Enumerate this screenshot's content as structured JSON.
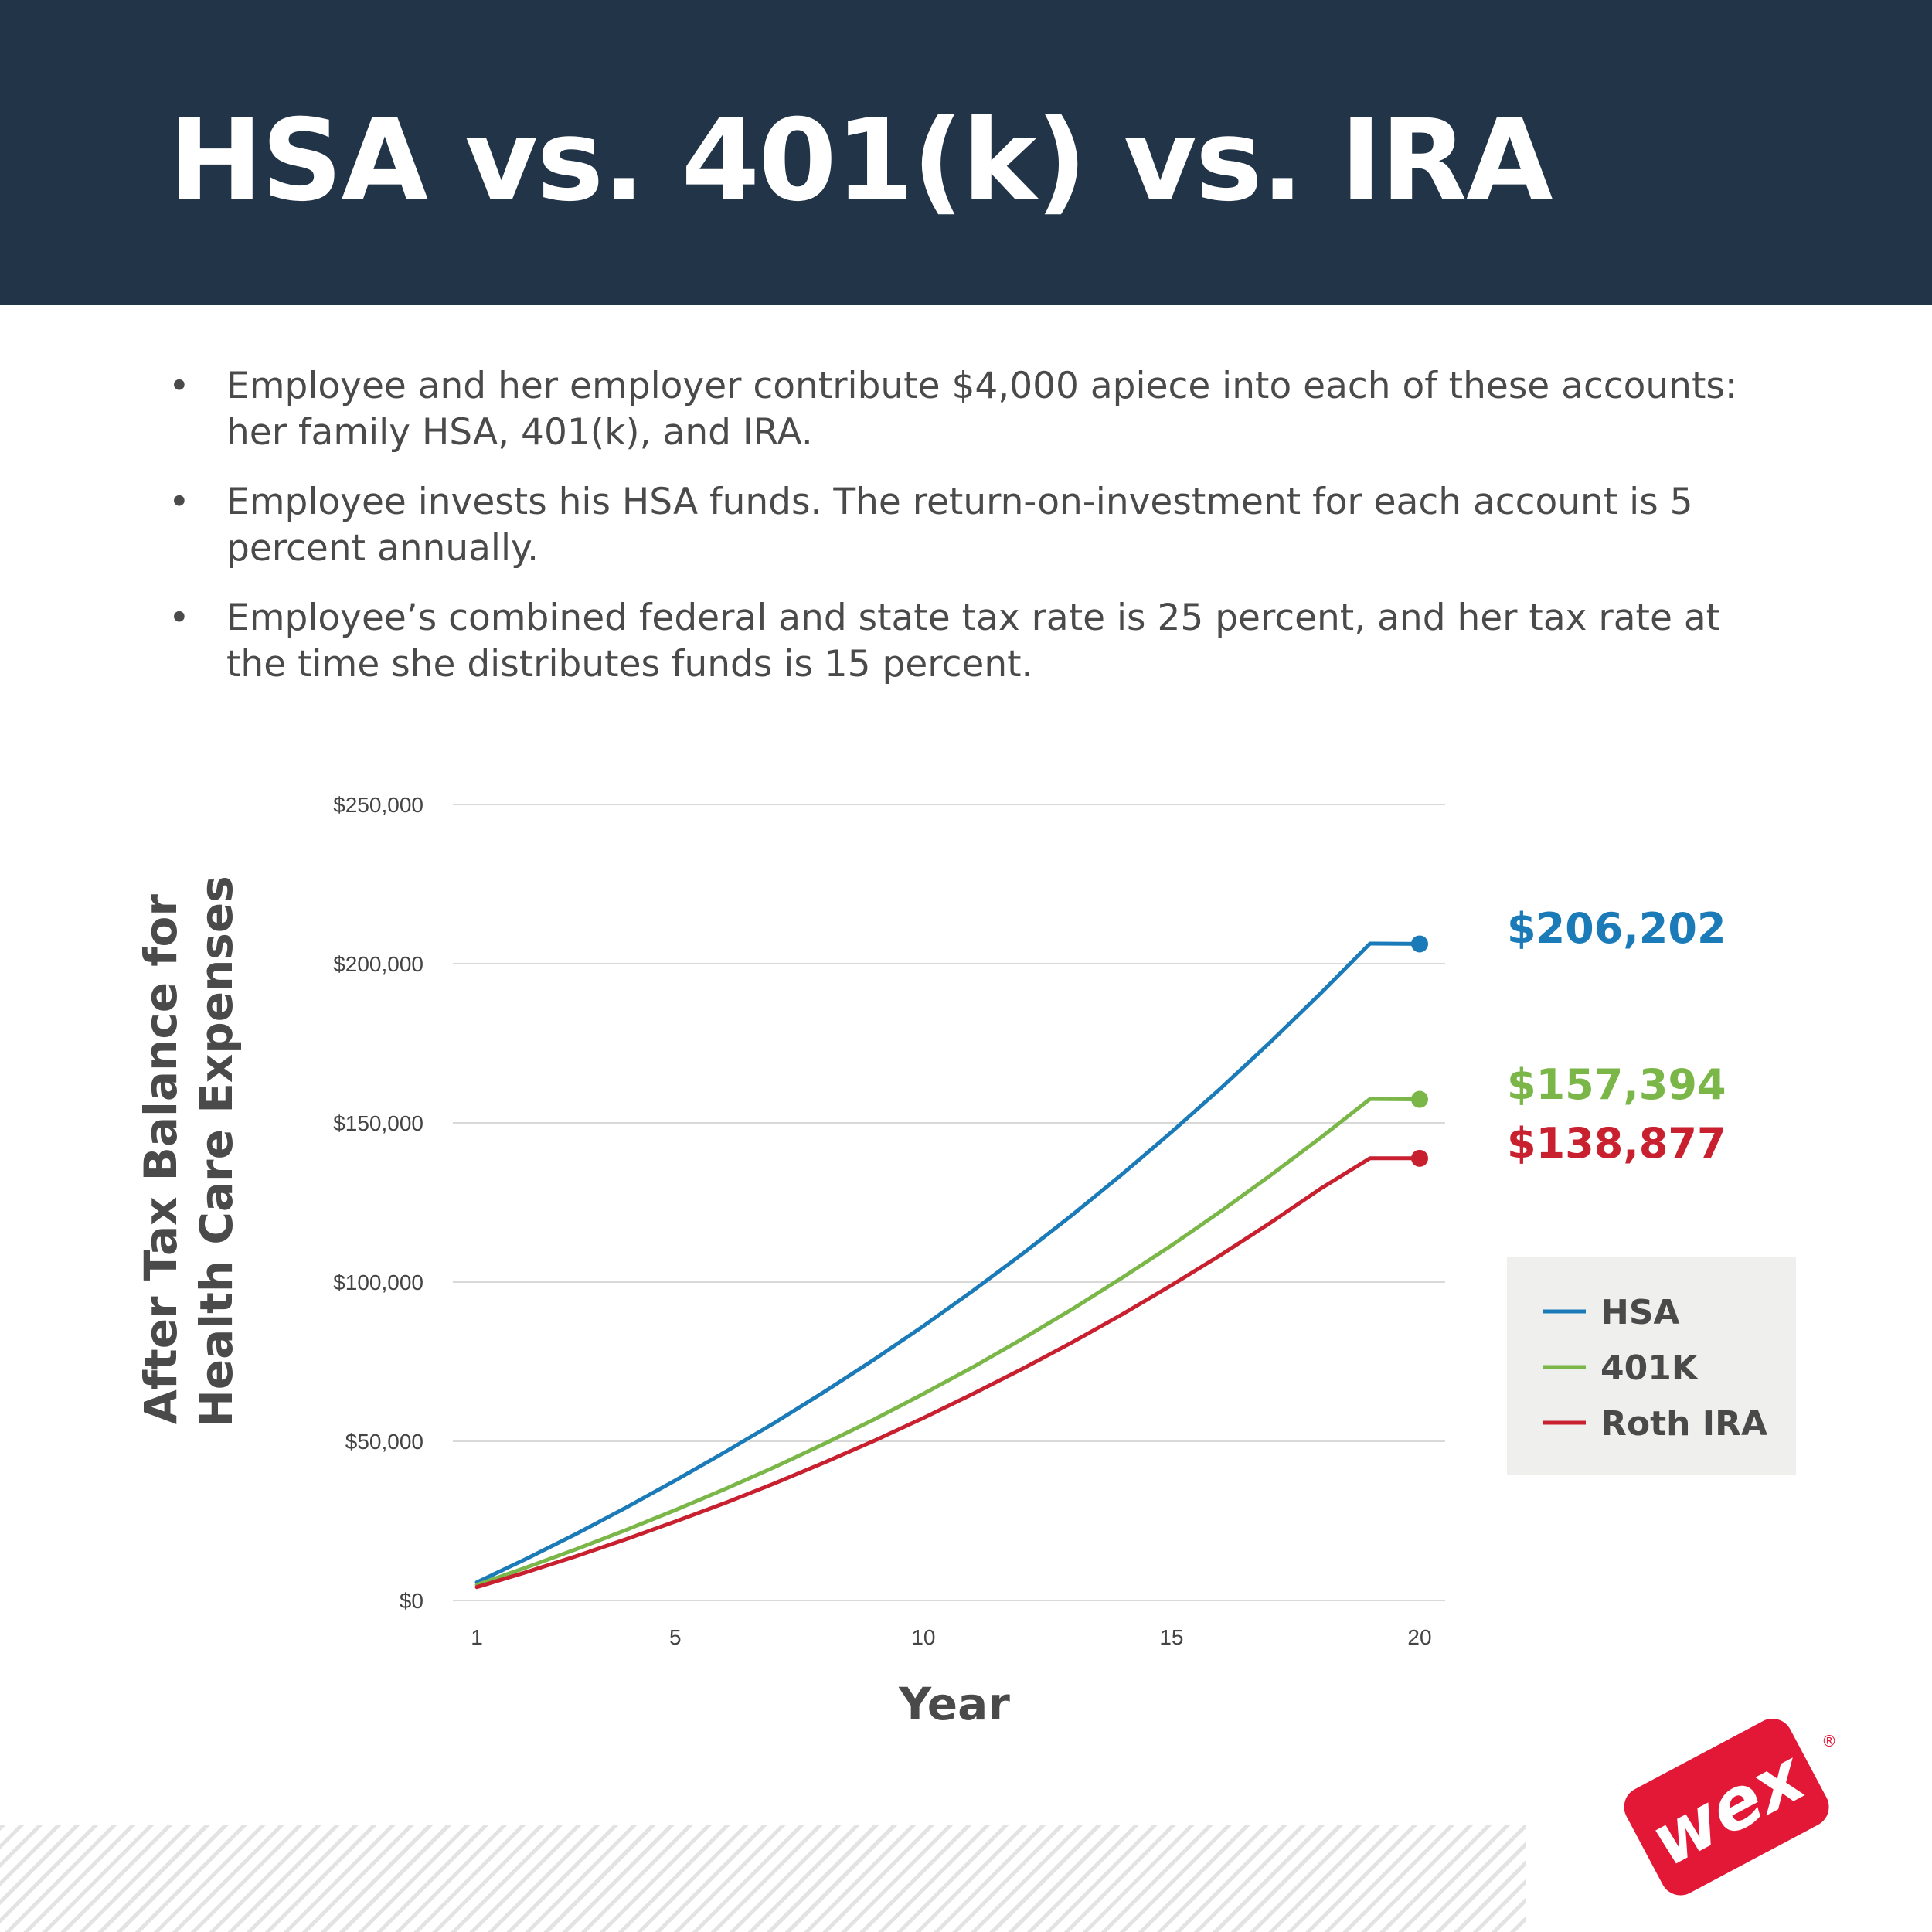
{
  "header": {
    "title": "HSA vs. 401(k) vs. IRA"
  },
  "bullets": [
    "Employee and her employer contribute $4,000 apiece into each of these accounts: her family HSA, 401(k), and IRA.",
    "Employee invests his HSA funds. The return-on-investment for each account is 5 percent annually.",
    "Employee’s combined federal and state tax rate is 25 percent, and her tax rate at the time she distributes funds is 15 percent."
  ],
  "bullet_symbol": "•",
  "chart_data": {
    "type": "line",
    "title": "",
    "xlabel": "Year",
    "ylabel": "After Tax Balance for Health Care Expenses",
    "xlim": [
      1,
      20
    ],
    "ylim": [
      0,
      250000
    ],
    "x_ticks": [
      1,
      5,
      10,
      15,
      20
    ],
    "y_ticks": [
      0,
      50000,
      100000,
      150000,
      200000,
      250000
    ],
    "y_tick_labels": [
      "$0",
      "$50,000",
      "$100,000",
      "$150,000",
      "$200,000",
      "$250,000"
    ],
    "grid": true,
    "legend_position": "right",
    "x": [
      1,
      2,
      3,
      4,
      5,
      6,
      7,
      8,
      9,
      10,
      11,
      12,
      13,
      14,
      15,
      16,
      17,
      18,
      19,
      20
    ],
    "series": [
      {
        "name": "HSA",
        "color": "#1a7bb8",
        "values": [
          5700,
          13100,
          20900,
          29100,
          37700,
          46600,
          55800,
          65500,
          75600,
          86200,
          97300,
          108900,
          121100,
          133800,
          147100,
          161000,
          175500,
          190600,
          206300,
          206202
        ],
        "end_label": "$206,202"
      },
      {
        "name": "401K",
        "color": "#7ab648",
        "values": [
          4900,
          10400,
          16100,
          22100,
          28400,
          35000,
          41900,
          49200,
          56800,
          64900,
          73300,
          82200,
          91500,
          101300,
          111500,
          122300,
          133600,
          145300,
          157500,
          157394
        ],
        "end_label": "$157,394"
      },
      {
        "name": "Roth IRA",
        "color": "#c8202f",
        "values": [
          4200,
          8900,
          13900,
          19200,
          24800,
          30600,
          36800,
          43300,
          50100,
          57300,
          64900,
          72800,
          81100,
          89800,
          99000,
          108600,
          118700,
          129300,
          138900,
          138877
        ],
        "end_label": "$138,877"
      }
    ]
  },
  "logo": {
    "text": "wex",
    "registered_mark": "®",
    "color": "#e31837"
  }
}
